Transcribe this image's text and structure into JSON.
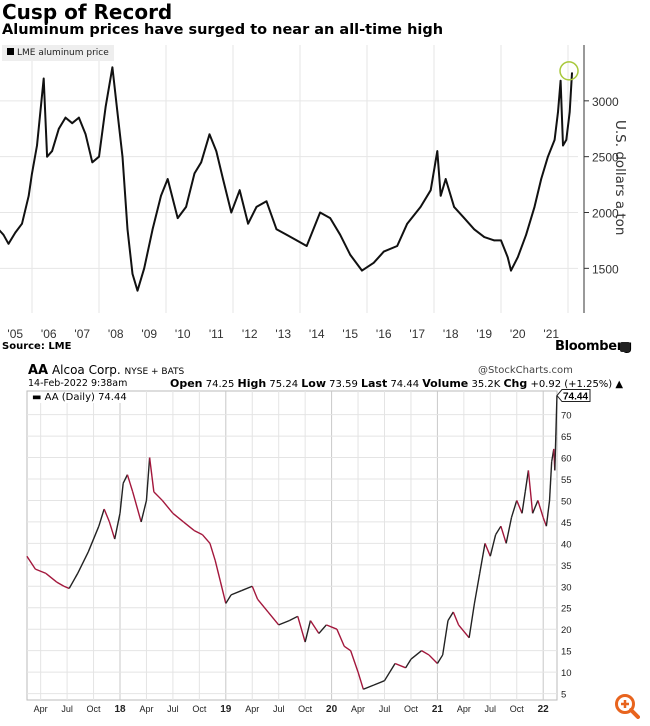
{
  "header": {
    "title": "Cusp of Record",
    "subtitle": "Aluminum prices have surged to near an all-time high"
  },
  "footer": {
    "source": "Source: LME",
    "brand": "Bloomberg"
  },
  "stockcharts": {
    "symbol": "AA",
    "company": "Alcoa Corp.",
    "exchange": "NYSE + BATS",
    "brand": "@StockCharts.com",
    "date": "14-Feb-2022 9:38am",
    "open_label": "Open",
    "open": "74.25",
    "high_label": "High",
    "high": "75.24",
    "low_label": "Low",
    "low": "73.59",
    "last_label": "Last",
    "last": "74.44",
    "volume_label": "Volume",
    "volume": "35.2K",
    "chg_label": "Chg",
    "chg": "+0.92 (+1.25%)",
    "legend": "AA (Daily) 74.44",
    "last_tag": "74.44"
  },
  "colors": {
    "line1": "#111111",
    "line2": "#a3173c",
    "highlight": "#a8c83c",
    "zoom": "#e8641e"
  },
  "chart_data": [
    {
      "type": "line",
      "title": "Cusp of Record",
      "subtitle": "Aluminum prices have surged to near an all-time high",
      "legend": [
        "LME aluminum price"
      ],
      "legend_position": "top-left",
      "ylabel": "U.S. dollars a ton",
      "xlabel": "",
      "ylim": [
        1100,
        3500
      ],
      "xlim": [
        2005.0,
        2022.4
      ],
      "yticks": [
        1500,
        2000,
        2500,
        3000
      ],
      "xtick_labels": [
        "'05",
        "'06",
        "'07",
        "'08",
        "'09",
        "'10",
        "'11",
        "'12",
        "'13",
        "'14",
        "'15",
        "'16",
        "'17",
        "'18",
        "'19",
        "'20",
        "'21"
      ],
      "grid": true,
      "x": [
        2005.0,
        2005.15,
        2005.3,
        2005.5,
        2005.7,
        2005.9,
        2006.0,
        2006.15,
        2006.35,
        2006.45,
        2006.6,
        2006.8,
        2007.0,
        2007.2,
        2007.4,
        2007.6,
        2007.8,
        2008.0,
        2008.2,
        2008.4,
        2008.55,
        2008.7,
        2008.85,
        2009.0,
        2009.15,
        2009.35,
        2009.6,
        2009.85,
        2010.05,
        2010.35,
        2010.6,
        2010.85,
        2011.05,
        2011.3,
        2011.5,
        2011.7,
        2011.95,
        2012.2,
        2012.45,
        2012.7,
        2013.0,
        2013.3,
        2013.6,
        2013.9,
        2014.2,
        2014.6,
        2014.9,
        2015.2,
        2015.5,
        2015.85,
        2016.2,
        2016.5,
        2016.9,
        2017.2,
        2017.6,
        2017.9,
        2018.1,
        2018.2,
        2018.35,
        2018.6,
        2018.9,
        2019.2,
        2019.5,
        2019.8,
        2020.0,
        2020.2,
        2020.3,
        2020.5,
        2020.75,
        2021.0,
        2021.2,
        2021.4,
        2021.6,
        2021.7,
        2021.78,
        2021.85,
        2021.95,
        2022.05,
        2022.12
      ],
      "values": [
        1850,
        1800,
        1720,
        1820,
        1900,
        2150,
        2350,
        2600,
        3200,
        2500,
        2550,
        2750,
        2850,
        2800,
        2850,
        2700,
        2450,
        2500,
        2950,
        3300,
        2900,
        2500,
        1850,
        1450,
        1300,
        1500,
        1850,
        2150,
        2300,
        1950,
        2050,
        2350,
        2450,
        2700,
        2550,
        2300,
        2000,
        2200,
        1900,
        2050,
        2100,
        1850,
        1800,
        1750,
        1700,
        2000,
        1950,
        1800,
        1620,
        1480,
        1550,
        1650,
        1700,
        1900,
        2050,
        2200,
        2550,
        2150,
        2300,
        2050,
        1950,
        1850,
        1780,
        1750,
        1750,
        1600,
        1480,
        1600,
        1800,
        2050,
        2300,
        2500,
        2650,
        2900,
        3180,
        2600,
        2650,
        2900,
        3250
      ]
    },
    {
      "type": "line",
      "title": "AA Alcoa Corp. NYSE + BATS",
      "legend": [
        "AA (Daily) 74.44"
      ],
      "legend_position": "top-left",
      "xlabel": "",
      "ylabel": "",
      "ylim": [
        3.5,
        75.5
      ],
      "xlim": [
        2017.12,
        2022.15
      ],
      "yticks": [
        5,
        10,
        15,
        20,
        25,
        30,
        35,
        40,
        45,
        50,
        55,
        60,
        65,
        70
      ],
      "xticks": [
        2017.25,
        2017.5,
        2017.75,
        2018.0,
        2018.25,
        2018.5,
        2018.75,
        2019.0,
        2019.25,
        2019.5,
        2019.75,
        2020.0,
        2020.25,
        2020.5,
        2020.75,
        2021.0,
        2021.25,
        2021.5,
        2021.75,
        2022.0
      ],
      "xtick_labels": [
        "Apr",
        "Jul",
        "Oct",
        "18",
        "Apr",
        "Jul",
        "Oct",
        "19",
        "Apr",
        "Jul",
        "Oct",
        "20",
        "Apr",
        "Jul",
        "Oct",
        "21",
        "Apr",
        "Jul",
        "Oct",
        "22"
      ],
      "grid": true,
      "x": [
        2017.12,
        2017.2,
        2017.3,
        2017.4,
        2017.47,
        2017.52,
        2017.6,
        2017.7,
        2017.8,
        2017.85,
        2017.9,
        2017.95,
        2018.0,
        2018.03,
        2018.07,
        2018.12,
        2018.2,
        2018.25,
        2018.28,
        2018.32,
        2018.4,
        2018.5,
        2018.6,
        2018.7,
        2018.78,
        2018.85,
        2018.9,
        2018.95,
        2019.0,
        2019.05,
        2019.15,
        2019.25,
        2019.3,
        2019.4,
        2019.5,
        2019.6,
        2019.68,
        2019.75,
        2019.8,
        2019.88,
        2019.95,
        2020.05,
        2020.12,
        2020.18,
        2020.25,
        2020.3,
        2020.4,
        2020.5,
        2020.6,
        2020.7,
        2020.75,
        2020.85,
        2020.92,
        2021.0,
        2021.05,
        2021.1,
        2021.15,
        2021.2,
        2021.3,
        2021.35,
        2021.4,
        2021.45,
        2021.5,
        2021.55,
        2021.6,
        2021.65,
        2021.7,
        2021.75,
        2021.8,
        2021.83,
        2021.86,
        2021.9,
        2021.95,
        2022.0,
        2022.03,
        2022.06,
        2022.08,
        2022.1,
        2022.11,
        2022.13
      ],
      "values": [
        37,
        34,
        33,
        31,
        30,
        29.5,
        33,
        38,
        44,
        48,
        45,
        41,
        47,
        54,
        56,
        52,
        45,
        50,
        60,
        52,
        50,
        47,
        45,
        43,
        42,
        40,
        36,
        31,
        26,
        28,
        29,
        30,
        27,
        24,
        21,
        22,
        23,
        17,
        22,
        19,
        21,
        20,
        16,
        15,
        10,
        6,
        7,
        8,
        12,
        11,
        13,
        15,
        14,
        12,
        14,
        22,
        24,
        21,
        18,
        26,
        33,
        40,
        37,
        42,
        44,
        40,
        46,
        50,
        47,
        52,
        57,
        47,
        50,
        46,
        44,
        50,
        59,
        62,
        57,
        74.44
      ]
    }
  ]
}
